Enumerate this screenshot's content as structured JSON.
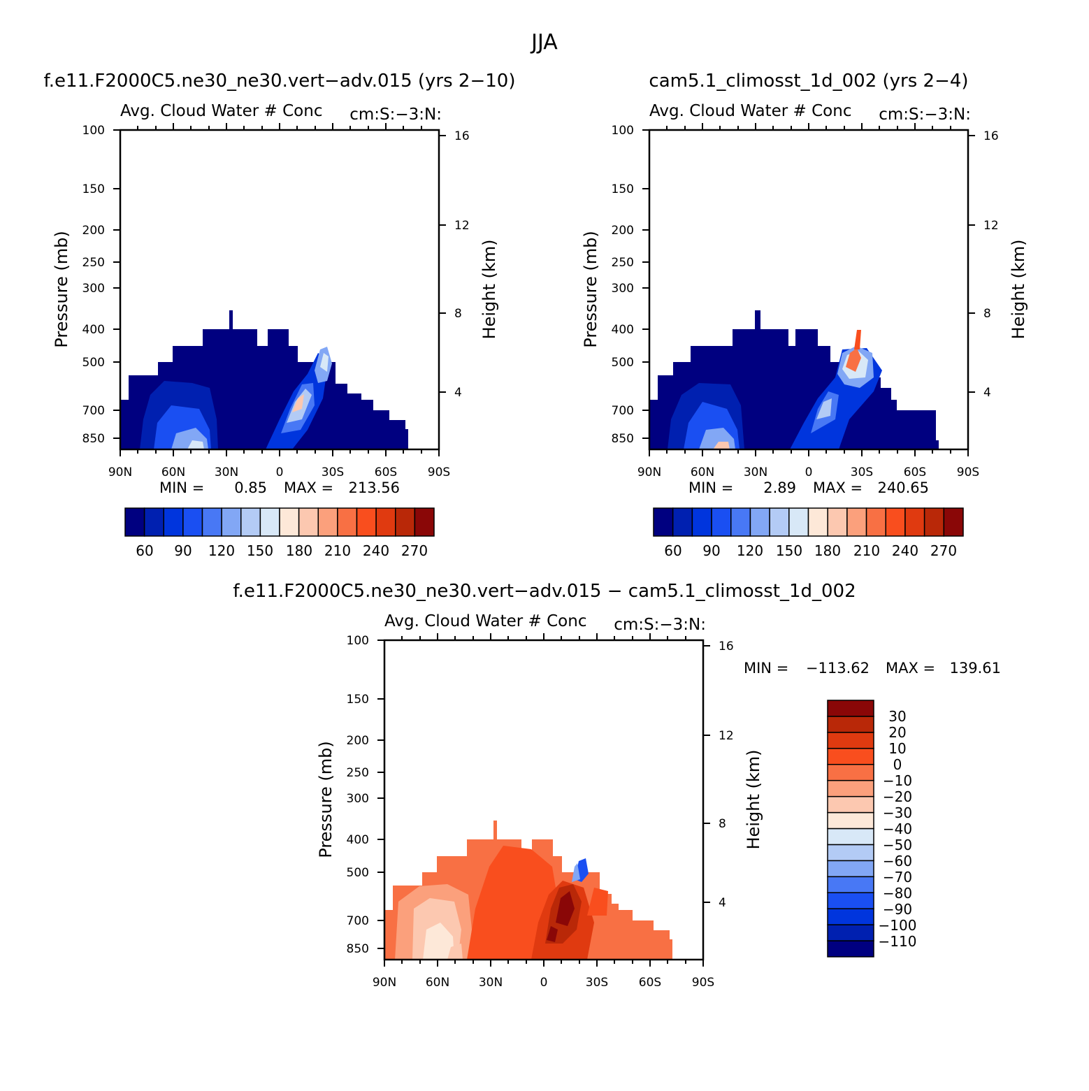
{
  "figure": {
    "title": "JJA"
  },
  "colors": {
    "positive_scale": [
      "#000080",
      "#0020b0",
      "#0035dd",
      "#1a4ff2",
      "#4878f5",
      "#82a7f5",
      "#b3cbf5",
      "#d8e8f7",
      "#fde8d8",
      "#fcc8b0",
      "#fba07c",
      "#f87044",
      "#f94e1e",
      "#e03a10",
      "#b92808",
      "#8a0707"
    ],
    "difference_scale": [
      "#000080",
      "#0020b0",
      "#0035dd",
      "#1a4ff2",
      "#4878f5",
      "#82a7f5",
      "#b3cbf5",
      "#d8e8f7",
      "#fde8d8",
      "#fcc8b0",
      "#fba07c",
      "#f87044",
      "#f94e1e",
      "#e03a10",
      "#b92808",
      "#8a0707"
    ]
  },
  "chart_data": [
    {
      "type": "heatmap",
      "panel": "top-left",
      "title": "f.e11.F2000C5.ne30_ne30.vert−adv.015 (yrs 2−10)",
      "subtitle": "Avg. Cloud Water # Conc",
      "subtitle_right": "cm:S:−3:N:",
      "ylabel": "Pressure (mb)",
      "ylabel_right": "Height (km)",
      "xticks": [
        "90N",
        "60N",
        "30N",
        "0",
        "30S",
        "60S",
        "90S"
      ],
      "yticks": [
        "100",
        "150",
        "200",
        "250",
        "300",
        "400",
        "500",
        "700",
        "850"
      ],
      "yticks_right": [
        "16",
        "12",
        "8",
        "4"
      ],
      "min_label": "MIN =",
      "min_value": "0.85",
      "max_label": "MAX =",
      "max_value": "213.56",
      "colorbar_labels": [
        "60",
        "90",
        "120",
        "150",
        "180",
        "210",
        "240",
        "270"
      ],
      "legend_position": "bottom"
    },
    {
      "type": "heatmap",
      "panel": "top-right",
      "title": "cam5.1_climosst_1d_002 (yrs 2−4)",
      "subtitle": "Avg. Cloud Water # Conc",
      "subtitle_right": "cm:S:−3:N:",
      "ylabel": "Pressure (mb)",
      "ylabel_right": "Height (km)",
      "xticks": [
        "90N",
        "60N",
        "30N",
        "0",
        "30S",
        "60S",
        "90S"
      ],
      "yticks": [
        "100",
        "150",
        "200",
        "250",
        "300",
        "400",
        "500",
        "700",
        "850"
      ],
      "yticks_right": [
        "16",
        "12",
        "8",
        "4"
      ],
      "min_label": "MIN =",
      "min_value": "2.89",
      "max_label": "MAX =",
      "max_value": "240.65",
      "colorbar_labels": [
        "60",
        "90",
        "120",
        "150",
        "180",
        "210",
        "240",
        "270"
      ],
      "legend_position": "bottom"
    },
    {
      "type": "heatmap",
      "panel": "bottom",
      "title": "f.e11.F2000C5.ne30_ne30.vert−adv.015 − cam5.1_climosst_1d_002",
      "subtitle": "Avg. Cloud Water # Conc",
      "subtitle_right": "cm:S:−3:N:",
      "ylabel": "Pressure (mb)",
      "ylabel_right": "Height (km)",
      "xticks": [
        "90N",
        "60N",
        "30N",
        "0",
        "30S",
        "60S",
        "90S"
      ],
      "yticks": [
        "100",
        "150",
        "200",
        "250",
        "300",
        "400",
        "500",
        "700",
        "850"
      ],
      "yticks_right": [
        "16",
        "12",
        "8",
        "4"
      ],
      "min_label": "MIN =",
      "min_value": "−113.62",
      "max_label": "MAX =",
      "max_value": "139.61",
      "colorbar_labels": [
        "30",
        "20",
        "10",
        "0",
        "−10",
        "−20",
        "−30",
        "−40",
        "−50",
        "−60",
        "−70",
        "−80",
        "−90",
        "−100",
        "−110"
      ],
      "legend_position": "right"
    }
  ]
}
